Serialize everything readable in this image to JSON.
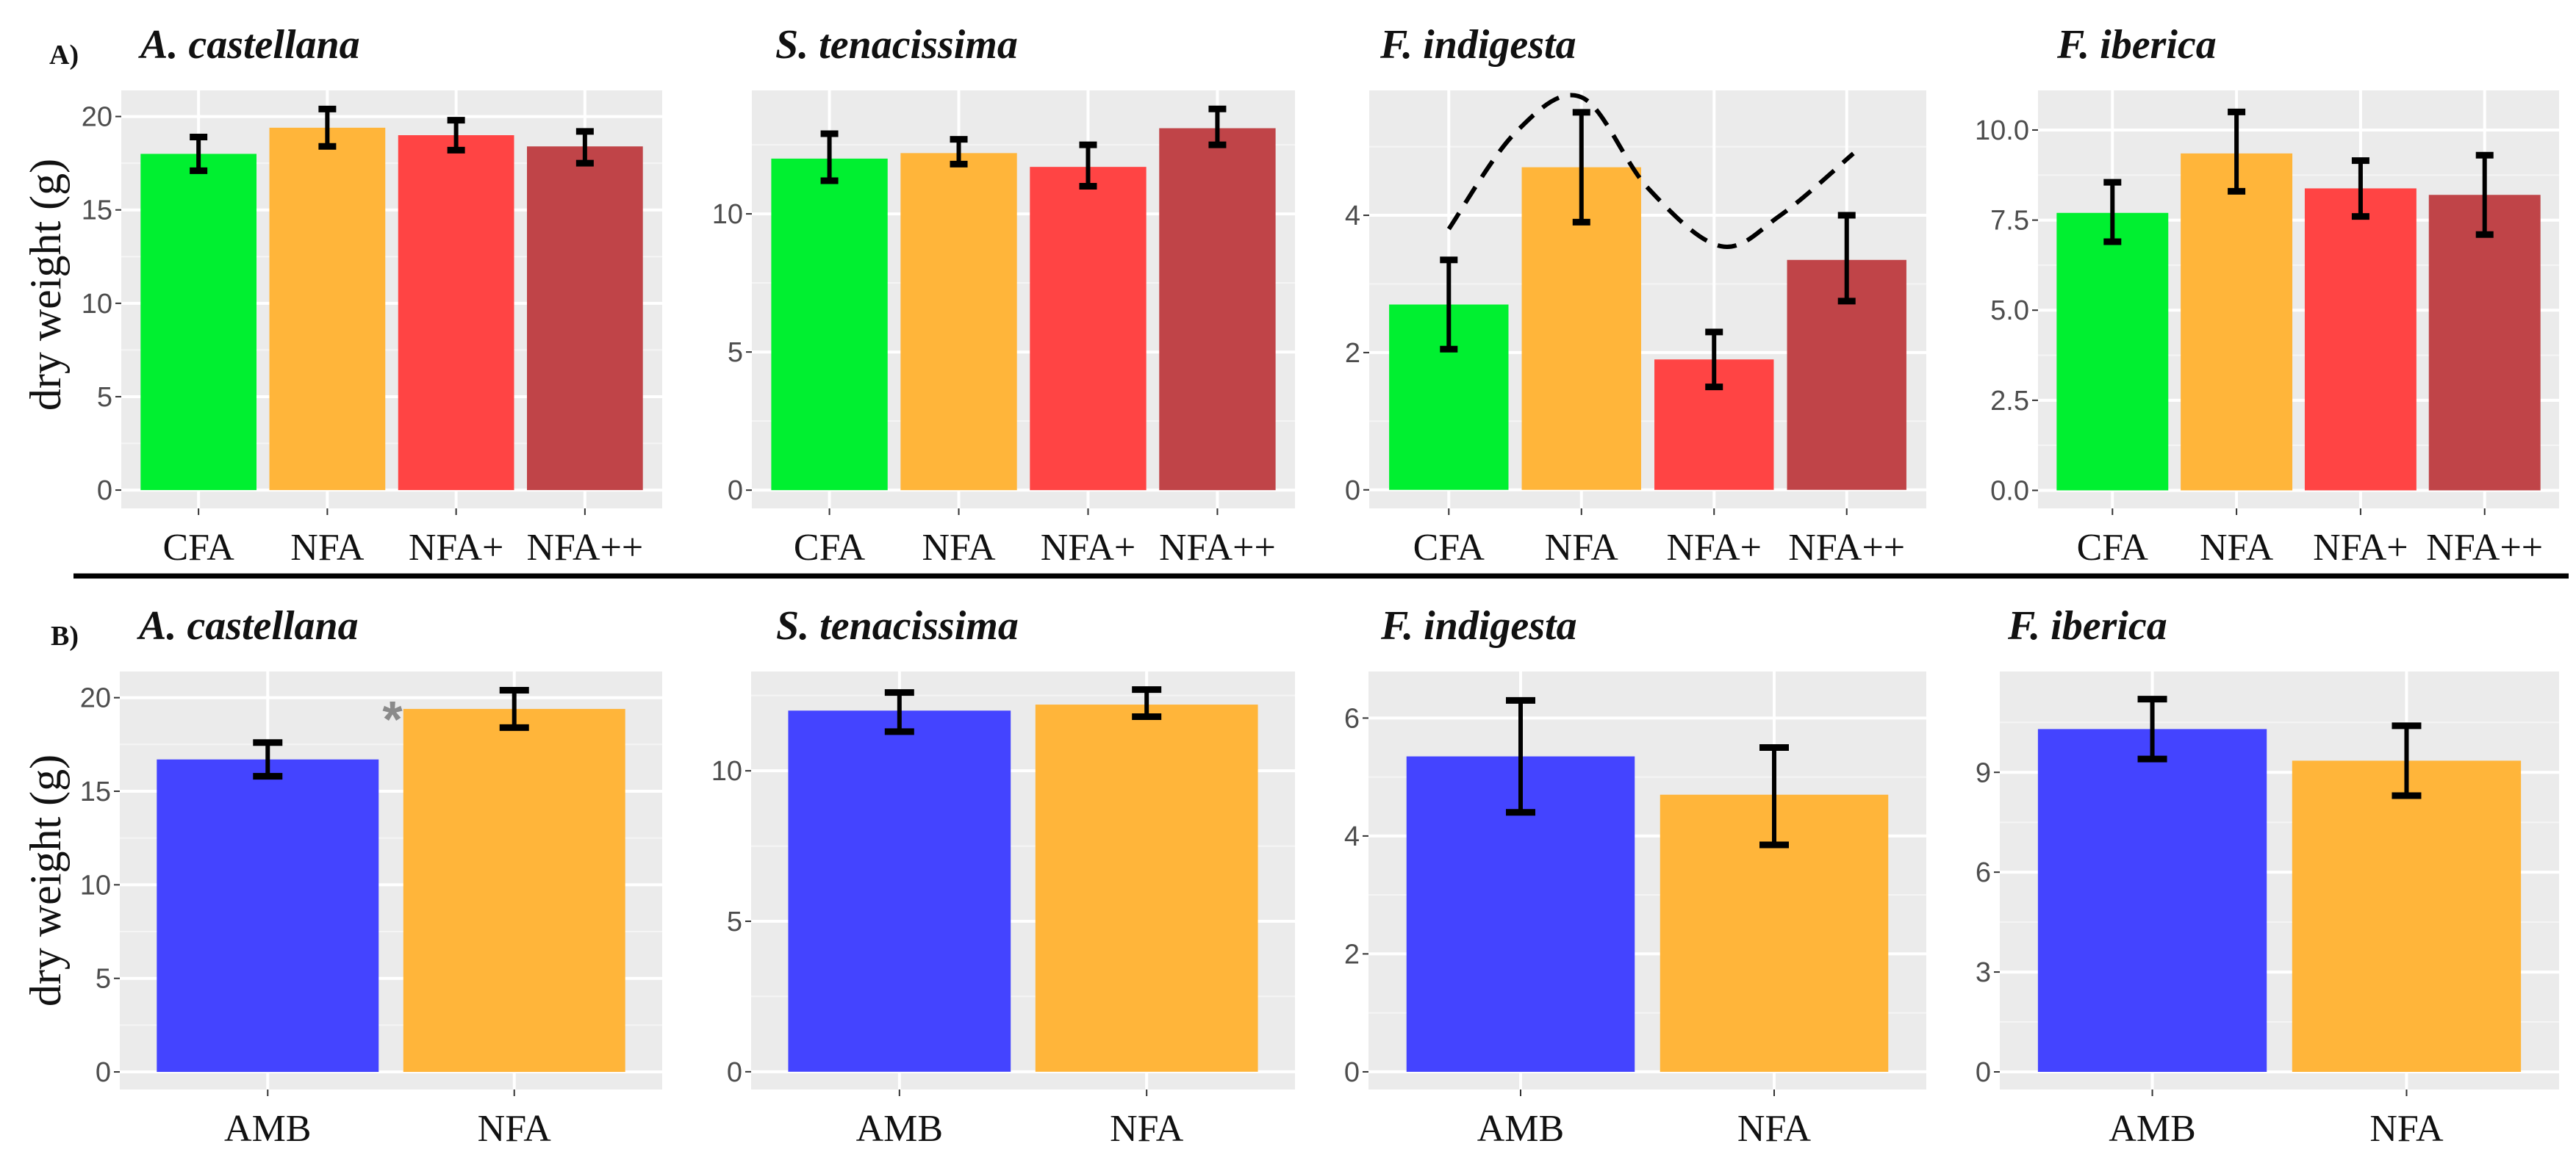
{
  "chart_data": [
    {
      "panel_label": "A)",
      "type": "bar",
      "title": "A. castellana",
      "ylabel": "dry weight (g)",
      "categories": [
        "CFA",
        "NFA",
        "NFA+",
        "NFA++"
      ],
      "values": [
        18.0,
        19.4,
        19.0,
        18.4
      ],
      "error_low": [
        17.1,
        18.4,
        18.2,
        17.5
      ],
      "error_high": [
        18.9,
        20.4,
        19.8,
        19.2
      ],
      "colors": [
        "#00f030",
        "#ffb53a",
        "#ff4444",
        "#c04448"
      ],
      "ylim": [
        -0.98,
        21.4
      ],
      "yticks": [
        0,
        5,
        10,
        15,
        20
      ],
      "ytick_labels": [
        "0",
        "5",
        "10",
        "15",
        "20"
      ]
    },
    {
      "type": "bar",
      "title": "S. tenacissima",
      "categories": [
        "CFA",
        "NFA",
        "NFA+",
        "NFA++"
      ],
      "values": [
        12.0,
        12.2,
        11.7,
        13.1
      ],
      "error_low": [
        11.2,
        11.8,
        11.0,
        12.5
      ],
      "error_high": [
        12.9,
        12.7,
        12.5,
        13.8
      ],
      "colors": [
        "#00f030",
        "#ffb53a",
        "#ff4444",
        "#c04448"
      ],
      "ylim": [
        -0.66,
        14.47
      ],
      "yticks": [
        0,
        5,
        10
      ],
      "ytick_labels": [
        "0",
        "5",
        "10"
      ]
    },
    {
      "type": "bar",
      "title": "F. indigesta",
      "categories": [
        "CFA",
        "NFA",
        "NFA+",
        "NFA++"
      ],
      "values": [
        2.7,
        4.7,
        1.9,
        3.35
      ],
      "error_low": [
        2.05,
        3.9,
        1.5,
        2.75
      ],
      "error_high": [
        3.35,
        5.5,
        2.3,
        4.0
      ],
      "colors": [
        "#00f030",
        "#ffb53a",
        "#ff4444",
        "#c04448"
      ],
      "ylim": [
        -0.27,
        5.82
      ],
      "yticks": [
        0,
        2,
        4
      ],
      "ytick_labels": [
        "0",
        "2",
        "4"
      ],
      "dashed_curve": {
        "x": [
          1,
          1.5,
          2,
          2.5,
          3.05,
          3.5,
          4.05
        ],
        "y": [
          3.8,
          5.2,
          5.72,
          4.4,
          3.55,
          4.0,
          4.9
        ]
      }
    },
    {
      "type": "bar",
      "title": "F. iberica",
      "categories": [
        "CFA",
        "NFA",
        "NFA+",
        "NFA++"
      ],
      "values": [
        7.7,
        9.35,
        8.38,
        8.2
      ],
      "error_low": [
        6.9,
        8.3,
        7.6,
        7.1
      ],
      "error_high": [
        8.55,
        10.5,
        9.15,
        9.3
      ],
      "colors": [
        "#00f030",
        "#ffb53a",
        "#ff4444",
        "#c04448"
      ],
      "ylim": [
        -0.5,
        11.1
      ],
      "yticks": [
        0,
        2.5,
        5,
        7.5,
        10
      ],
      "ytick_labels": [
        "0.0",
        "2.5",
        "5.0",
        "7.5",
        "10.0"
      ]
    },
    {
      "panel_label": "B)",
      "type": "bar",
      "title": "A. castellana",
      "ylabel": "dry weight (g)",
      "categories": [
        "AMB",
        "NFA"
      ],
      "values": [
        16.7,
        19.4
      ],
      "error_low": [
        15.8,
        18.4
      ],
      "error_high": [
        17.6,
        20.4
      ],
      "colors": [
        "#4444ff",
        "#ffb53a"
      ],
      "ylim": [
        -0.94,
        21.4
      ],
      "yticks": [
        0,
        5,
        10,
        15,
        20
      ],
      "ytick_labels": [
        "0",
        "5",
        "10",
        "15",
        "20"
      ],
      "significance": "*"
    },
    {
      "type": "bar",
      "title": "S. tenacissima",
      "categories": [
        "AMB",
        "NFA"
      ],
      "values": [
        12.0,
        12.2
      ],
      "error_low": [
        11.3,
        11.8
      ],
      "error_high": [
        12.6,
        12.7
      ],
      "colors": [
        "#4444ff",
        "#ffb53a"
      ],
      "ylim": [
        -0.59,
        13.3
      ],
      "yticks": [
        0,
        5,
        10
      ],
      "ytick_labels": [
        "0",
        "5",
        "10"
      ]
    },
    {
      "type": "bar",
      "title": "F. indigesta",
      "categories": [
        "AMB",
        "NFA"
      ],
      "values": [
        5.35,
        4.7
      ],
      "error_low": [
        4.4,
        3.85
      ],
      "error_high": [
        6.3,
        5.5
      ],
      "colors": [
        "#4444ff",
        "#ffb53a"
      ],
      "ylim": [
        -0.3,
        6.79
      ],
      "yticks": [
        0,
        2,
        4,
        6
      ],
      "ytick_labels": [
        "0",
        "2",
        "4",
        "6"
      ]
    },
    {
      "type": "bar",
      "title": "F. iberica",
      "categories": [
        "AMB",
        "NFA"
      ],
      "values": [
        10.3,
        9.35
      ],
      "error_low": [
        9.4,
        8.3
      ],
      "error_high": [
        11.2,
        10.4
      ],
      "colors": [
        "#4444ff",
        "#ffb53a"
      ],
      "ylim": [
        -0.53,
        12.03
      ],
      "yticks": [
        0,
        3,
        6,
        9
      ],
      "ytick_labels": [
        "0",
        "3",
        "6",
        "9"
      ]
    }
  ]
}
